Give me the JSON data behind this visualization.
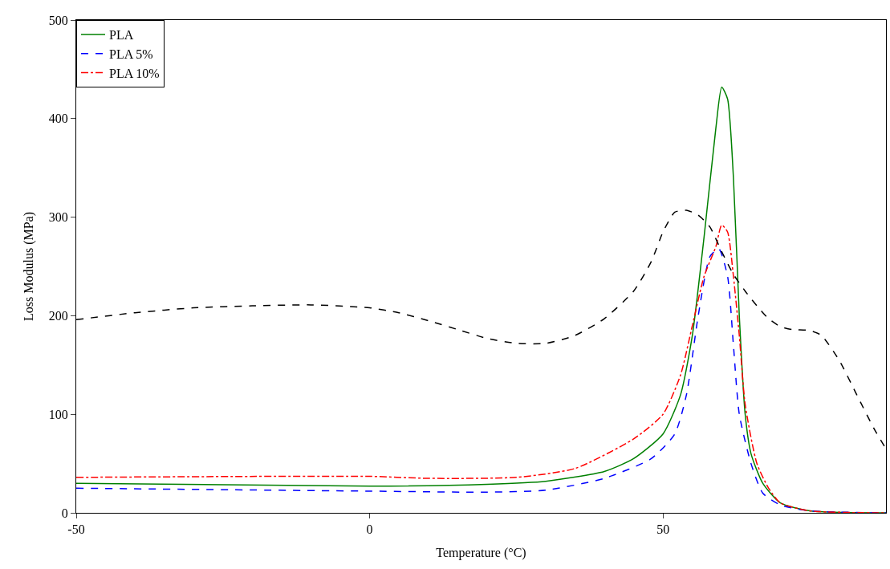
{
  "chart_data": {
    "type": "line",
    "xlabel": "Temperature (°C)",
    "ylabel": "Loss Modulus (MPa)",
    "xlim": [
      -50,
      88
    ],
    "xticks": [
      -50,
      0,
      50
    ],
    "ylim": [
      0,
      500
    ],
    "yticks": [
      0,
      100,
      200,
      300,
      400,
      500
    ],
    "legend": "top left",
    "marker": "none",
    "series": [
      {
        "name": "PLA",
        "color": "#008000",
        "line_style": "solid",
        "x": [
          -50,
          0,
          20,
          30,
          40,
          45,
          50,
          53,
          55,
          57,
          59,
          60,
          61,
          62,
          63,
          64,
          65,
          67,
          70,
          75,
          88
        ],
        "values": [
          30,
          27,
          29,
          32,
          42,
          55,
          80,
          120,
          180,
          280,
          390,
          432,
          420,
          340,
          200,
          100,
          60,
          30,
          10,
          2,
          0
        ]
      },
      {
        "name": "PLA 5%",
        "color": "#0000ff",
        "line_style": "dashed",
        "x": [
          -50,
          0,
          20,
          30,
          40,
          48,
          52,
          54,
          56,
          58,
          59.5,
          61,
          62,
          63,
          65,
          67,
          70,
          75,
          88
        ],
        "values": [
          25,
          22,
          21,
          23,
          35,
          55,
          80,
          120,
          200,
          260,
          268,
          240,
          170,
          100,
          50,
          20,
          8,
          2,
          0
        ]
      },
      {
        "name": "PLA 10%",
        "color": "#ff0000",
        "line_style": "dashdot",
        "x": [
          -50,
          0,
          10,
          25,
          35,
          45,
          50,
          53,
          55,
          57,
          59,
          60,
          61,
          62,
          63,
          64,
          66,
          68,
          70,
          75,
          88
        ],
        "values": [
          36,
          37,
          35,
          36,
          45,
          75,
          100,
          140,
          190,
          240,
          270,
          292,
          285,
          240,
          180,
          110,
          50,
          25,
          10,
          2,
          0
        ]
      },
      {
        "color": "#000000",
        "line_style": "dashed",
        "x": [
          -50,
          -40,
          -30,
          -20,
          -10,
          0,
          5,
          10,
          15,
          20,
          25,
          30,
          35,
          40,
          45,
          48,
          50,
          52,
          54,
          56,
          58,
          60,
          62,
          64,
          66,
          68,
          70,
          72,
          75,
          77,
          80,
          83,
          86,
          88
        ],
        "values": [
          196,
          203,
          208,
          210,
          211,
          208,
          203,
          195,
          186,
          177,
          172,
          172,
          180,
          197,
          225,
          255,
          285,
          305,
          307,
          302,
          290,
          265,
          242,
          225,
          210,
          197,
          189,
          186,
          185,
          180,
          155,
          120,
          85,
          65
        ]
      }
    ]
  }
}
